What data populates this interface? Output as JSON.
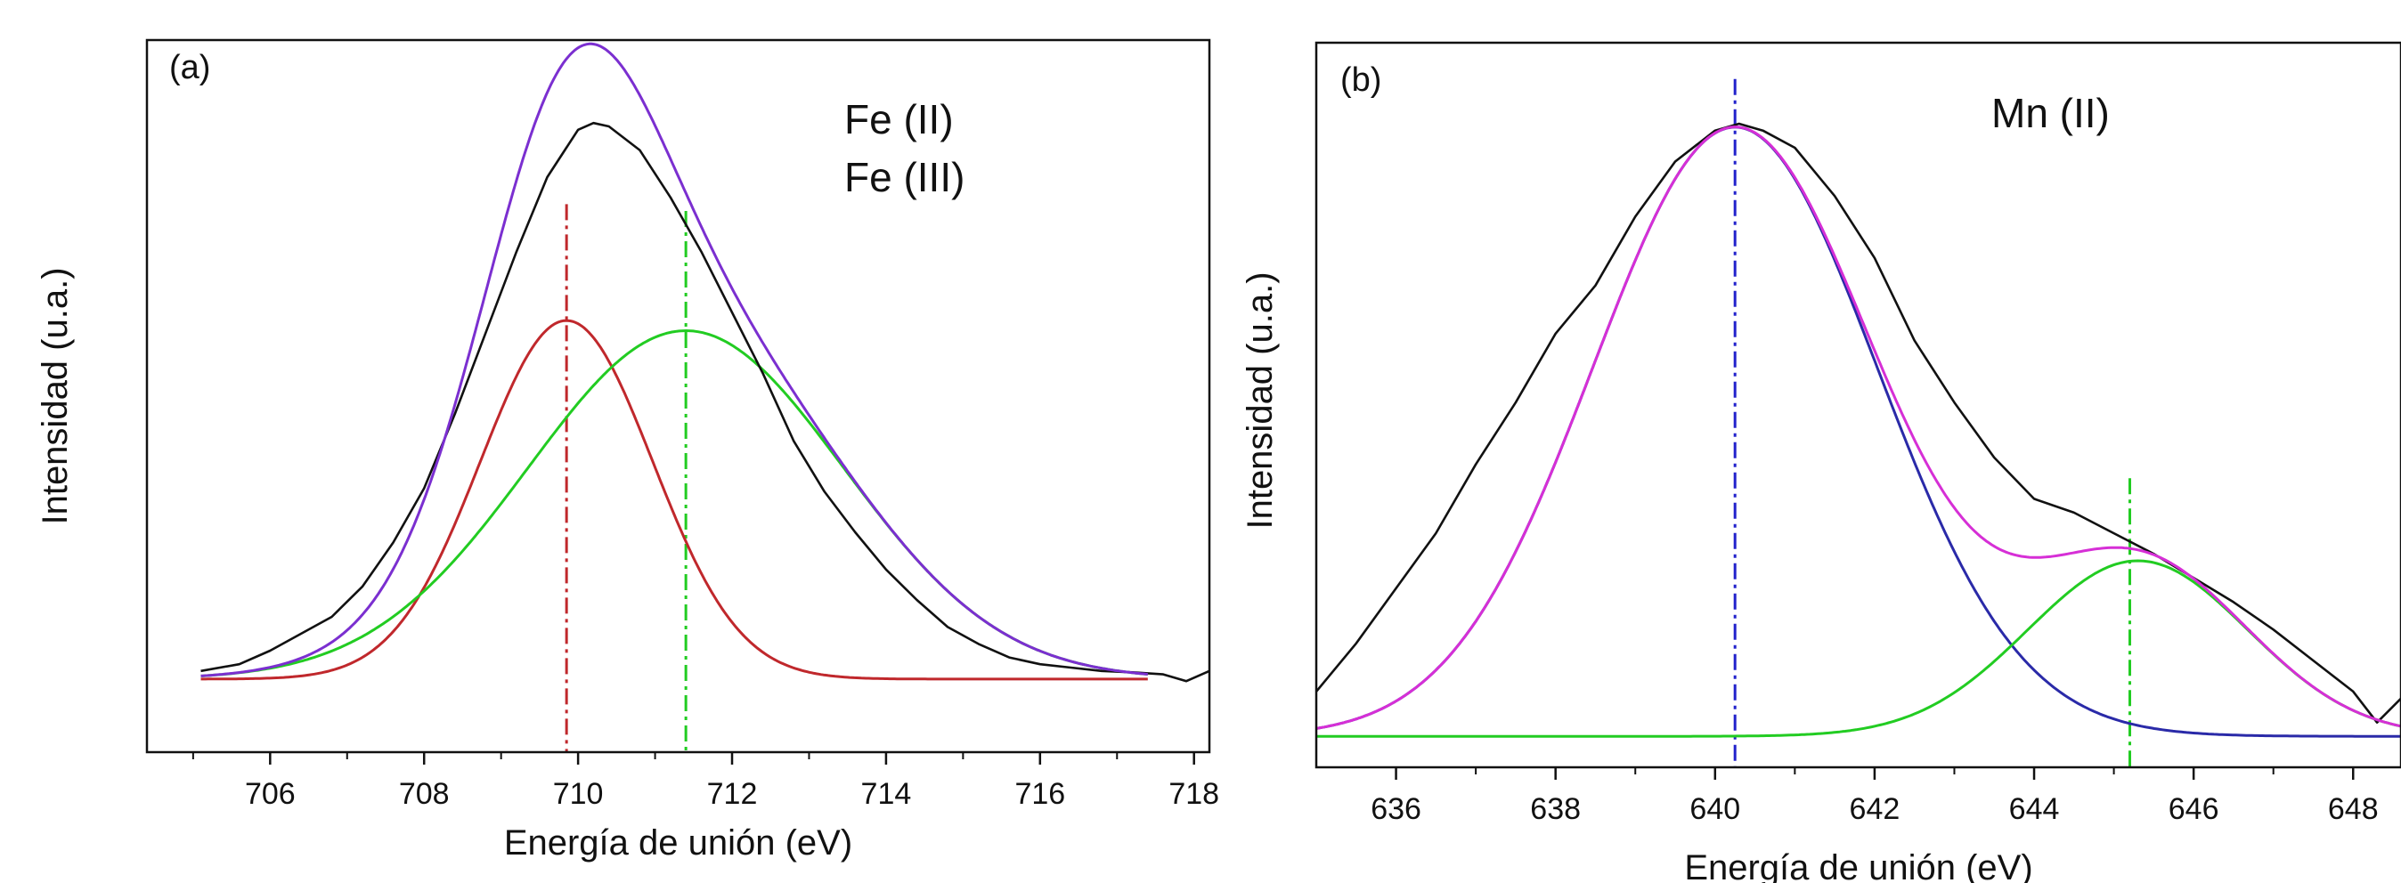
{
  "chart_data": [
    {
      "type": "line",
      "panel_label": "(a)",
      "xlabel": "Energía de unión (eV)",
      "ylabel": "Intensidad (u.a.)",
      "xlim": [
        704.4,
        718.2
      ],
      "ylim": [
        0,
        1.0
      ],
      "xticks": [
        706,
        708,
        710,
        712,
        714,
        716,
        718
      ],
      "xtick_labels": [
        "706",
        "708",
        "710",
        "712",
        "714",
        "716",
        "718"
      ],
      "show_y_ticks": false,
      "grid": false,
      "annotations": [
        "Fe (II)",
        "Fe (III)"
      ],
      "vlines": [
        {
          "x": 709.85,
          "y_top": 0.81,
          "color": "#c0282c"
        },
        {
          "x": 711.4,
          "y_top": 0.8,
          "color": "#22cc22"
        }
      ],
      "series": [
        {
          "kind": "gauss",
          "center": 709.85,
          "sigma": 1.12,
          "amp": 0.53,
          "base": 0.108,
          "x_range": [
            705.1,
            717.4
          ],
          "color": "#c0282c"
        },
        {
          "kind": "gauss",
          "center": 711.4,
          "sigma": 2.05,
          "amp": 0.515,
          "base": 0.108,
          "x_range": [
            705.1,
            717.4
          ],
          "color": "#22cc22"
        },
        {
          "kind": "raw",
          "color": "#111111",
          "x": [
            705.1,
            705.6,
            706.0,
            706.4,
            706.8,
            707.2,
            707.6,
            708.0,
            708.4,
            708.8,
            709.2,
            709.6,
            710.0,
            710.2,
            710.4,
            710.8,
            711.2,
            711.6,
            712.0,
            712.4,
            712.8,
            713.2,
            713.6,
            714.0,
            714.4,
            714.8,
            715.2,
            715.6,
            716.0,
            716.4,
            716.8,
            717.2,
            717.6,
            717.9,
            718.2
          ],
          "y": [
            0.12,
            0.13,
            0.15,
            0.175,
            0.2,
            0.245,
            0.31,
            0.39,
            0.5,
            0.62,
            0.74,
            0.85,
            0.92,
            0.93,
            0.925,
            0.89,
            0.82,
            0.74,
            0.65,
            0.56,
            0.46,
            0.385,
            0.325,
            0.27,
            0.225,
            0.185,
            0.16,
            0.14,
            0.13,
            0.125,
            0.12,
            0.118,
            0.115,
            0.105,
            0.12
          ]
        },
        {
          "kind": "sum",
          "color": "#7b2fd0"
        }
      ]
    },
    {
      "type": "line",
      "panel_label": "(b)",
      "xlabel": "Energía de unión (eV)",
      "ylabel": "Intensidad (u.a.)",
      "xlim": [
        635.0,
        648.6
      ],
      "ylim": [
        0,
        1.0
      ],
      "xticks": [
        636,
        638,
        640,
        642,
        644,
        646,
        648
      ],
      "xtick_labels": [
        "636",
        "638",
        "640",
        "642",
        "644",
        "646",
        "648"
      ],
      "show_y_ticks": false,
      "grid": false,
      "annotations": [
        "Mn (II)"
      ],
      "vlines": [
        {
          "x": 640.25,
          "y_top": 1.0,
          "color": "#2222cc"
        },
        {
          "x": 645.2,
          "y_top": 0.42,
          "color": "#22cc22"
        }
      ],
      "series": [
        {
          "kind": "gauss",
          "center": 640.25,
          "sigma": 1.78,
          "amp": 0.885,
          "base": 0.045,
          "x_range": [
            635.0,
            648.6
          ],
          "color": "#2a2aa8"
        },
        {
          "kind": "gauss",
          "center": 645.3,
          "sigma": 1.38,
          "amp": 0.255,
          "base": 0.045,
          "x_range": [
            635.0,
            648.6
          ],
          "color": "#22cc22"
        },
        {
          "kind": "raw",
          "color": "#111111",
          "x": [
            635.0,
            635.5,
            636.0,
            636.5,
            637.0,
            637.5,
            638.0,
            638.5,
            639.0,
            639.5,
            640.0,
            640.3,
            640.6,
            641.0,
            641.5,
            642.0,
            642.5,
            643.0,
            643.5,
            644.0,
            644.5,
            645.0,
            645.5,
            646.0,
            646.5,
            647.0,
            647.5,
            648.0,
            648.3,
            648.6
          ],
          "y": [
            0.11,
            0.18,
            0.26,
            0.34,
            0.44,
            0.53,
            0.63,
            0.7,
            0.8,
            0.88,
            0.925,
            0.935,
            0.925,
            0.9,
            0.83,
            0.74,
            0.62,
            0.53,
            0.45,
            0.39,
            0.37,
            0.34,
            0.31,
            0.275,
            0.24,
            0.2,
            0.155,
            0.11,
            0.065,
            0.1
          ]
        },
        {
          "kind": "sum",
          "color": "#d62fd6"
        }
      ]
    }
  ]
}
